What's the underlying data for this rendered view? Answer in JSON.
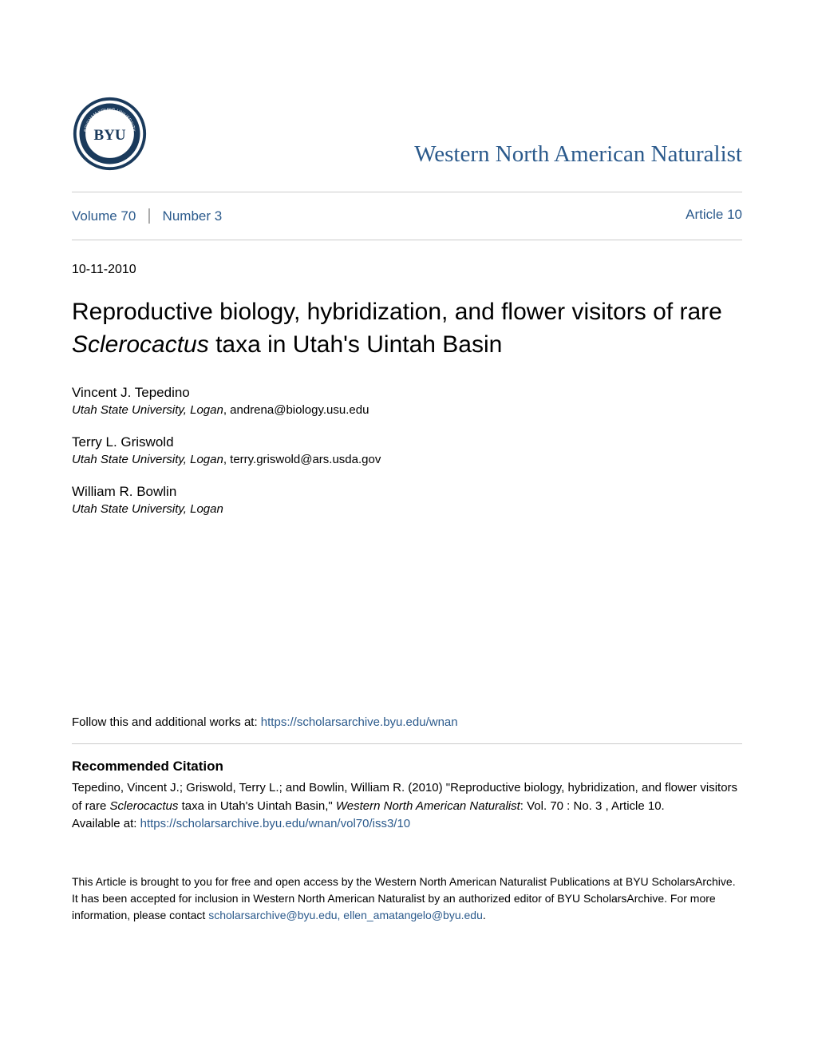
{
  "logo": {
    "outer_ring_color": "#1a3a5c",
    "inner_color": "#ffffff",
    "text_color": "#1a3a5c",
    "monogram": "BYU"
  },
  "journal_title": "Western North American Naturalist",
  "nav": {
    "volume_label": "Volume 70",
    "number_label": "Number 3",
    "article_label": "Article 10"
  },
  "date": "10-11-2010",
  "article_title": {
    "prefix": "Reproductive biology, hybridization, and flower visitors of rare ",
    "italic": "Sclerocactus",
    "suffix": " taxa in Utah's Uintah Basin"
  },
  "authors": [
    {
      "name": "Vincent J. Tepedino",
      "affiliation": "Utah State University, Logan",
      "email": "andrena@biology.usu.edu"
    },
    {
      "name": "Terry L. Griswold",
      "affiliation": "Utah State University, Logan",
      "email": "terry.griswold@ars.usda.gov"
    },
    {
      "name": "William R. Bowlin",
      "affiliation": "Utah State University, Logan",
      "email": ""
    }
  ],
  "follow": {
    "prefix": "Follow this and additional works at: ",
    "link": "https://scholarsarchive.byu.edu/wnan"
  },
  "citation": {
    "heading": "Recommended Citation",
    "text_1": "Tepedino, Vincent J.; Griswold, Terry L.; and Bowlin, William R. (2010) \"Reproductive biology, hybridization, and flower visitors of rare ",
    "italic_1": "Sclerocactus",
    "text_2": " taxa in Utah's Uintah Basin,\" ",
    "italic_2": "Western North American Naturalist",
    "text_3": ": Vol. 70 : No. 3 , Article 10.",
    "available_prefix": "Available at: ",
    "available_link": "https://scholarsarchive.byu.edu/wnan/vol70/iss3/10"
  },
  "footer": {
    "text_1": "This Article is brought to you for free and open access by the Western North American Naturalist Publications at BYU ScholarsArchive. It has been accepted for inclusion in Western North American Naturalist by an authorized editor of BYU ScholarsArchive. For more information, please contact ",
    "link": "scholarsarchive@byu.edu, ellen_amatangelo@byu.edu",
    "text_2": "."
  },
  "colors": {
    "link_color": "#2b5a8c",
    "text_color": "#000000",
    "divider_color": "#cccccc",
    "background": "#ffffff"
  }
}
